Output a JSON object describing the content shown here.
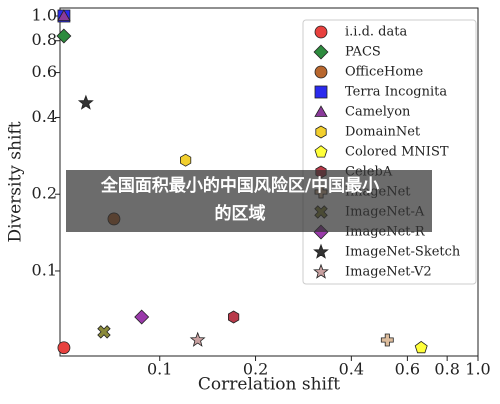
{
  "chart_data": {
    "type": "scatter",
    "xlabel": "Correlation shift",
    "ylabel": "Diversity shift",
    "xscale": "log",
    "yscale": "log",
    "xlim": [
      0.0486,
      1.0
    ],
    "ylim": [
      0.0464,
      1.075
    ],
    "xticks": [
      0.1,
      0.2,
      0.4,
      0.6,
      0.8,
      {
        "value": 1,
        "label": "1.0"
      }
    ],
    "yticks": [
      0.1,
      0.2,
      0.4,
      0.6,
      0.8,
      {
        "value": 1,
        "label": "1.0"
      }
    ],
    "legend": "upper right",
    "series": [
      {
        "name": "i.i.d. data",
        "color": "#e8413e",
        "marker": "circle",
        "x": [
          0.05
        ],
        "values": [
          0.05
        ]
      },
      {
        "name": "PACS",
        "color": "#2e8b3e",
        "marker": "diamond",
        "x": [
          0.05
        ],
        "values": [
          0.835
        ]
      },
      {
        "name": "OfficeHome",
        "color": "#b8672e",
        "marker": "circle",
        "x": [
          0.0718
        ],
        "values": [
          0.16
        ]
      },
      {
        "name": "Terra Incognita",
        "color": "#2a2aee",
        "marker": "square",
        "x": [
          0.05
        ],
        "values": [
          1.0
        ]
      },
      {
        "name": "Camelyon",
        "color": "#8a3a9a",
        "marker": "triangle",
        "x": [
          0.05
        ],
        "values": [
          1.0
        ]
      },
      {
        "name": "DomainNet",
        "color": "#f2cf2e",
        "marker": "hexagon",
        "x": [
          0.1206
        ],
        "values": [
          0.272
        ]
      },
      {
        "name": "Colored MNIST",
        "color": "#ffff3a",
        "marker": "pentagon",
        "x": [
          0.663
        ],
        "values": [
          0.05
        ]
      },
      {
        "name": "CelebA",
        "color": "#b83a4a",
        "marker": "hexagon",
        "x": [
          0.1706
        ],
        "values": [
          0.066
        ]
      },
      {
        "name": "ImageNet",
        "color": "#dcbc9c",
        "marker": "plus",
        "x": [
          0.519
        ],
        "values": [
          0.0536
        ]
      },
      {
        "name": "ImageNet-A",
        "color": "#8a8a3a",
        "marker": "x",
        "x": [
          0.0668
        ],
        "values": [
          0.0577
        ]
      },
      {
        "name": "ImageNet-R",
        "color": "#9a3aaa",
        "marker": "diamond",
        "x": [
          0.0878
        ],
        "values": [
          0.066
        ]
      },
      {
        "name": "ImageNet-Sketch",
        "color": "#333333",
        "marker": "star",
        "x": [
          0.0586
        ],
        "values": [
          0.456
        ]
      },
      {
        "name": "ImageNet-V2",
        "color": "#c8a0a0",
        "marker": "star",
        "x": [
          0.1316
        ],
        "values": [
          0.0536
        ]
      }
    ]
  },
  "banner": {
    "lines": [
      "全国面积最小的中国风险区/中国最小",
      "的区域"
    ]
  }
}
